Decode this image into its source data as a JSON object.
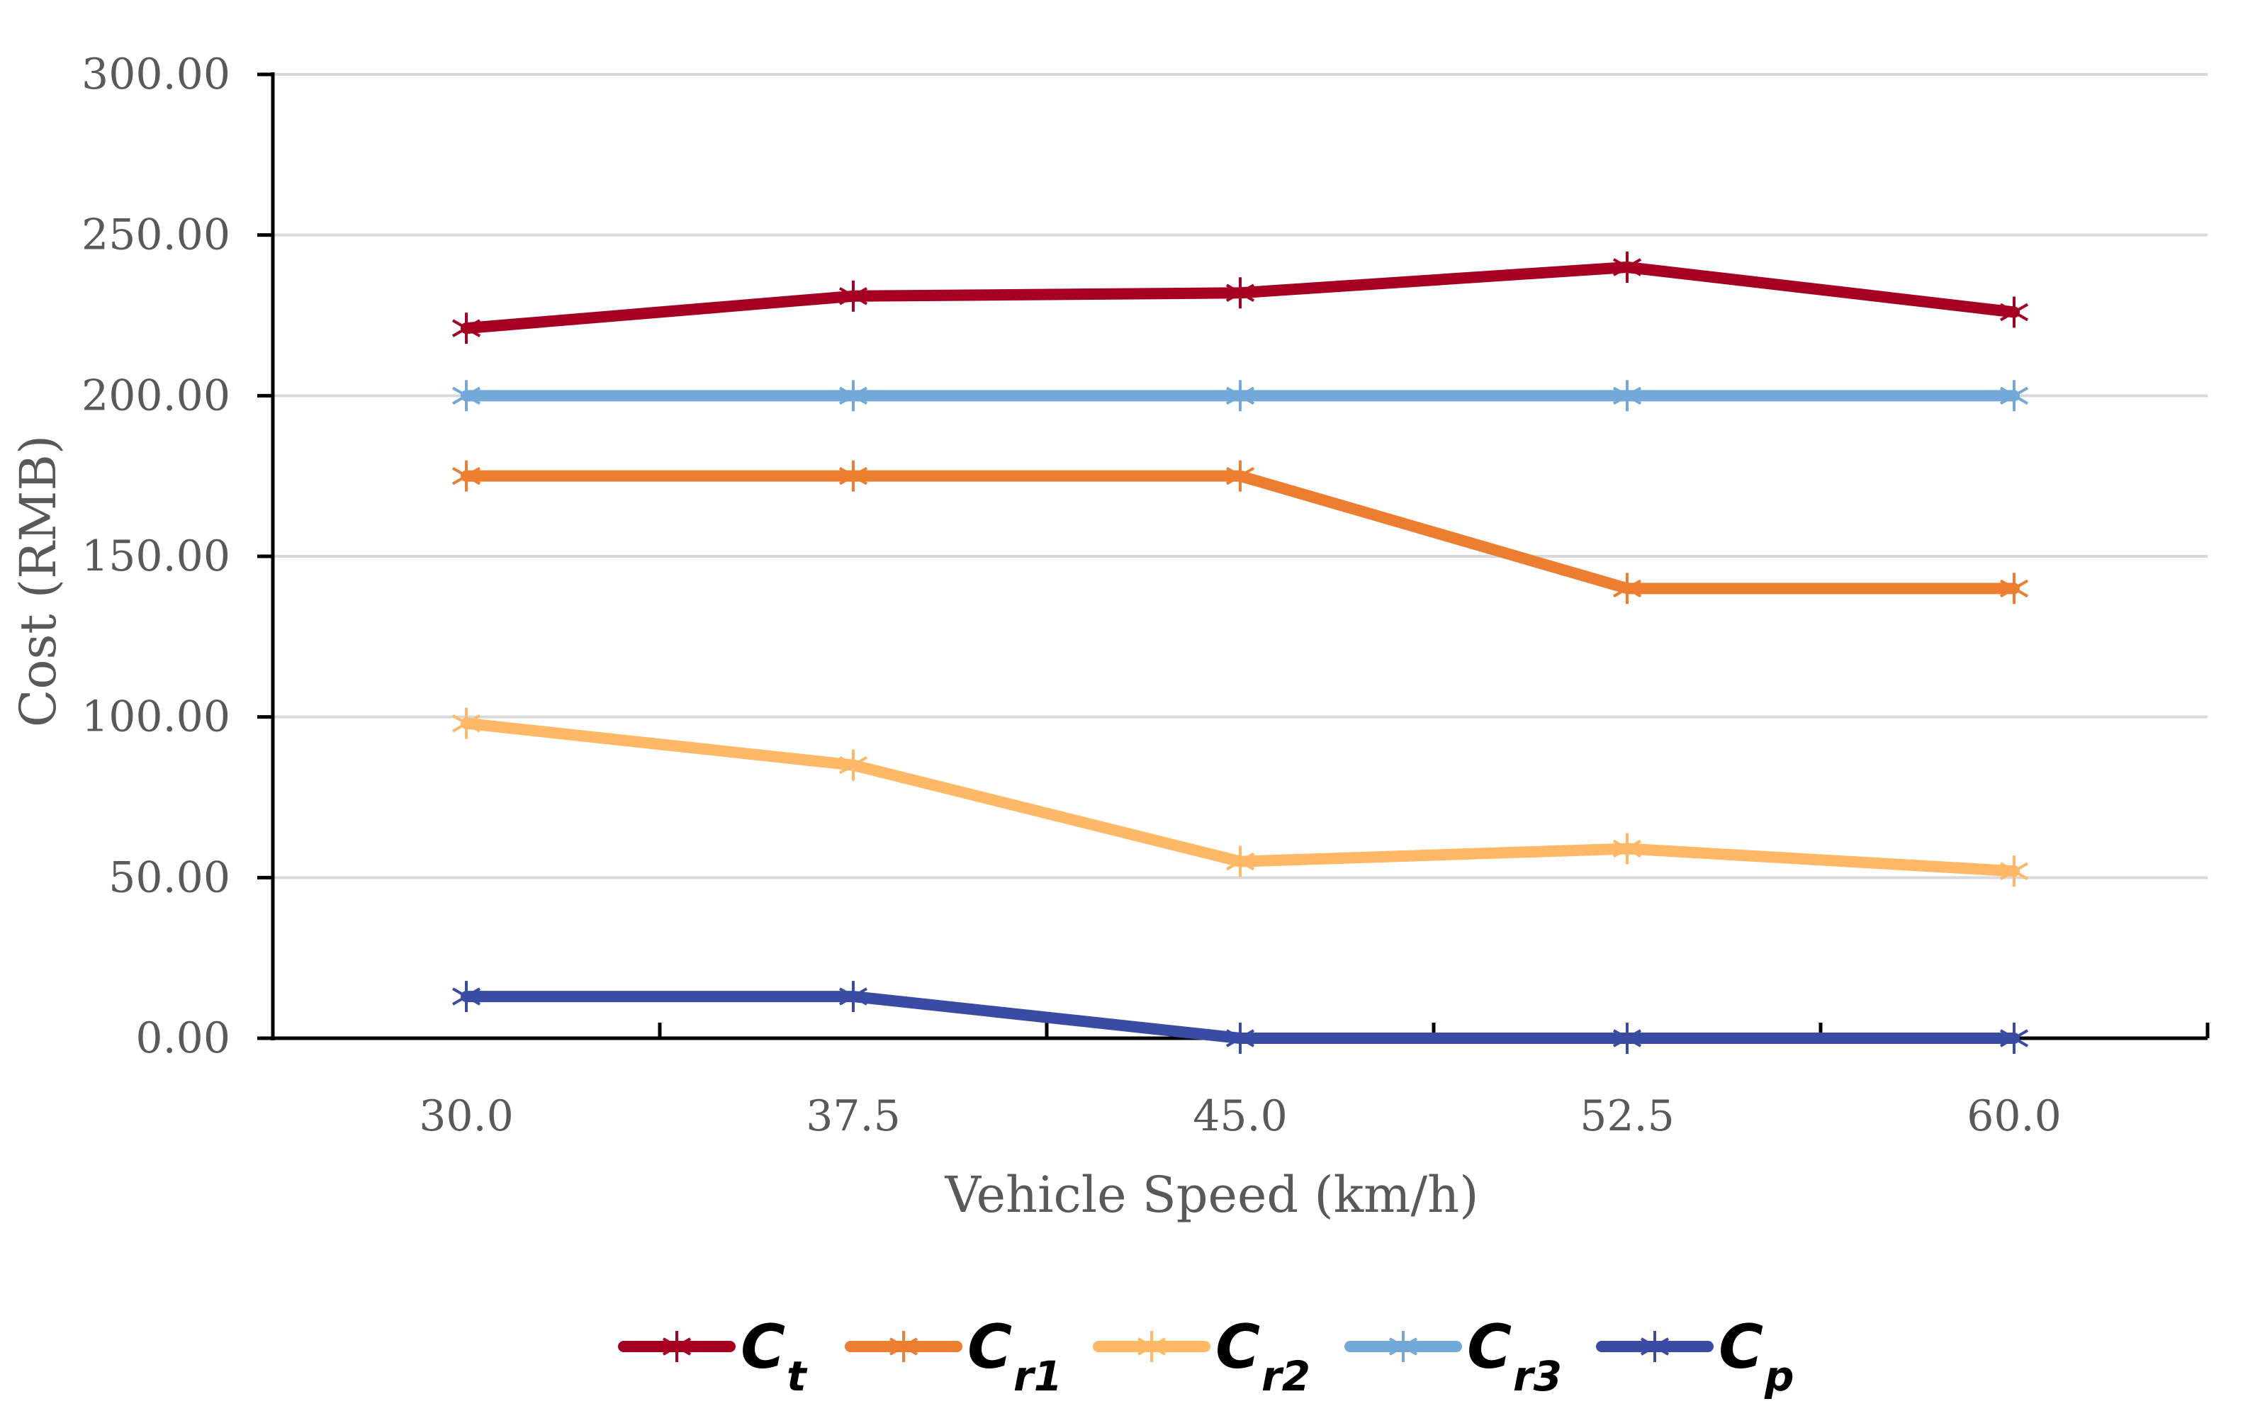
{
  "chart_data": {
    "type": "line",
    "title": "",
    "xlabel": "Vehicle Speed (km/h)",
    "ylabel": "Cost (RMB)",
    "categories": [
      "30.0",
      "37.5",
      "45.0",
      "52.5",
      "60.0"
    ],
    "ylim": [
      0,
      300
    ],
    "yticks": [
      "0.00",
      "50.00",
      "100.00",
      "150.00",
      "200.00",
      "250.00",
      "300.00"
    ],
    "grid": true,
    "legend_position": "bottom",
    "series": [
      {
        "name": "Ct",
        "letter": "C",
        "sub": "t",
        "color": "#A50021",
        "values": [
          221,
          231,
          232,
          240,
          226
        ]
      },
      {
        "name": "Cr1",
        "letter": "C",
        "sub": "r1",
        "color": "#ED7D31",
        "values": [
          175,
          175,
          175,
          140,
          140
        ]
      },
      {
        "name": "Cr2",
        "letter": "C",
        "sub": "r2",
        "color": "#FFB866",
        "values": [
          98,
          85,
          55,
          59,
          52
        ]
      },
      {
        "name": "Cr3",
        "letter": "C",
        "sub": "r3",
        "color": "#72A9D8",
        "values": [
          200,
          200,
          200,
          200,
          200
        ]
      },
      {
        "name": "Cp",
        "letter": "C",
        "sub": "p",
        "color": "#3A4BA3",
        "values": [
          13,
          13,
          0,
          0,
          0
        ]
      }
    ]
  }
}
